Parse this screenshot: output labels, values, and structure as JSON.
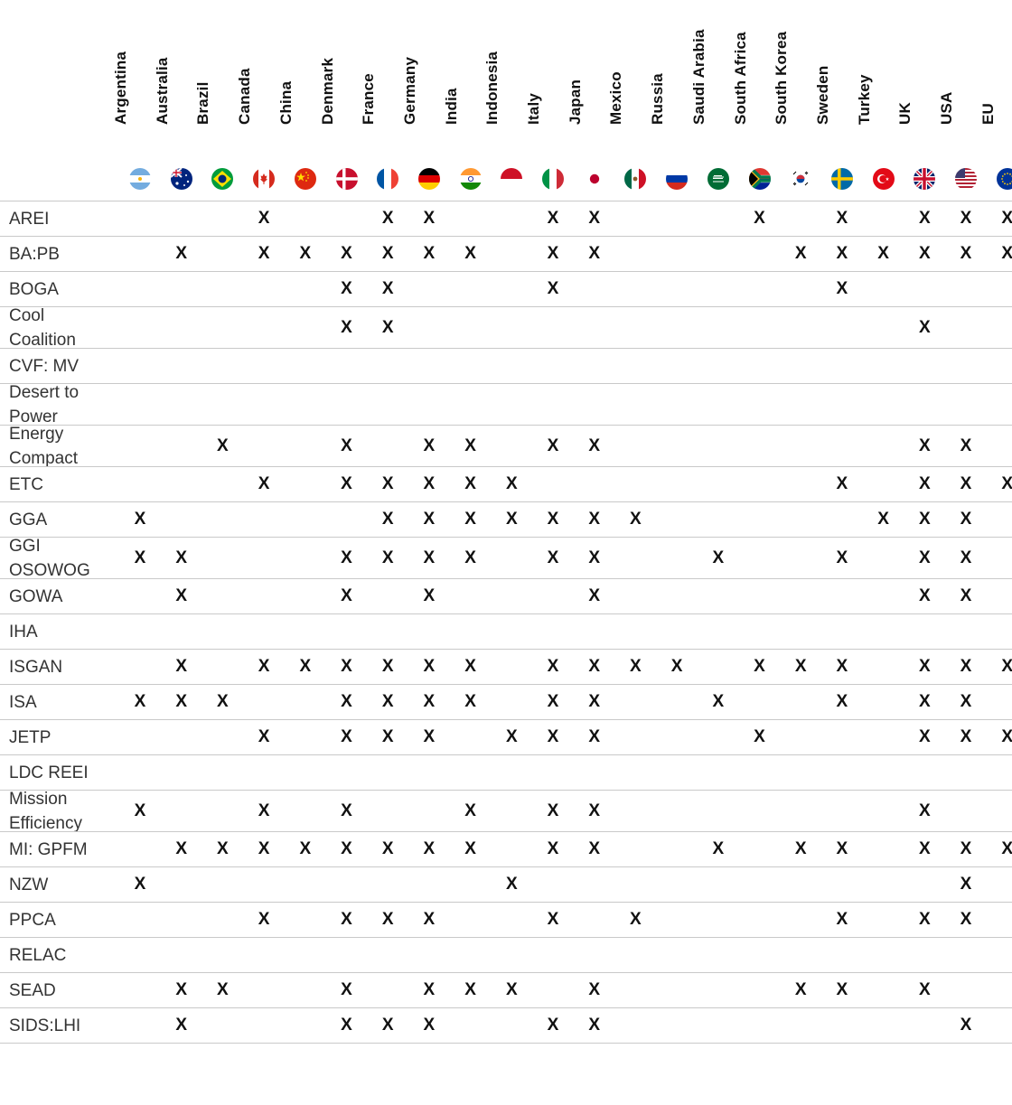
{
  "countries": [
    {
      "name": "Argentina",
      "icon": "argentina-flag-icon"
    },
    {
      "name": "Australia",
      "icon": "australia-flag-icon"
    },
    {
      "name": "Brazil",
      "icon": "brazil-flag-icon"
    },
    {
      "name": "Canada",
      "icon": "canada-flag-icon"
    },
    {
      "name": "China",
      "icon": "china-flag-icon"
    },
    {
      "name": "Denmark",
      "icon": "denmark-flag-icon"
    },
    {
      "name": "France",
      "icon": "france-flag-icon"
    },
    {
      "name": "Germany",
      "icon": "germany-flag-icon"
    },
    {
      "name": "India",
      "icon": "india-flag-icon"
    },
    {
      "name": "Indonesia",
      "icon": "indonesia-flag-icon"
    },
    {
      "name": "Italy",
      "icon": "italy-flag-icon"
    },
    {
      "name": "Japan",
      "icon": "japan-flag-icon"
    },
    {
      "name": "Mexico",
      "icon": "mexico-flag-icon"
    },
    {
      "name": "Russia",
      "icon": "russia-flag-icon"
    },
    {
      "name": "Saudi Arabia",
      "icon": "saudi-arabia-flag-icon"
    },
    {
      "name": "South Africa",
      "icon": "south-africa-flag-icon"
    },
    {
      "name": "South Korea",
      "icon": "south-korea-flag-icon"
    },
    {
      "name": "Sweden",
      "icon": "sweden-flag-icon"
    },
    {
      "name": "Turkey",
      "icon": "turkey-flag-icon"
    },
    {
      "name": "UK",
      "icon": "uk-flag-icon"
    },
    {
      "name": "USA",
      "icon": "usa-flag-icon"
    },
    {
      "name": "EU",
      "icon": "eu-flag-icon"
    }
  ],
  "mark_symbol": "X",
  "rule_color": "#c9c9c9",
  "rows": [
    {
      "label": "AREI",
      "marks": [
        "Canada",
        "France",
        "Germany",
        "Italy",
        "Japan",
        "South Africa",
        "Sweden",
        "UK",
        "USA",
        "EU"
      ]
    },
    {
      "label": "BA:PB",
      "marks": [
        "Australia",
        "Canada",
        "China",
        "Denmark",
        "France",
        "Germany",
        "India",
        "Italy",
        "Japan",
        "South Korea",
        "Sweden",
        "Turkey",
        "UK",
        "USA",
        "EU"
      ]
    },
    {
      "label": "BOGA",
      "marks": [
        "Denmark",
        "France",
        "Italy",
        "Sweden"
      ]
    },
    {
      "label": "Cool\nCoalition",
      "marks": [
        "Denmark",
        "France",
        "UK"
      ]
    },
    {
      "label": "CVF: MV",
      "marks": []
    },
    {
      "label": "Desert to\nPower",
      "marks": []
    },
    {
      "label": "Energy\nCompact",
      "marks": [
        "Brazil",
        "Denmark",
        "Germany",
        "India",
        "Italy",
        "Japan",
        "UK",
        "USA"
      ]
    },
    {
      "label": "ETC",
      "marks": [
        "Canada",
        "Denmark",
        "France",
        "Germany",
        "India",
        "Indonesia",
        "Sweden",
        "UK",
        "USA",
        "EU"
      ]
    },
    {
      "label": "GGA",
      "marks": [
        "Argentina",
        "France",
        "Germany",
        "India",
        "Indonesia",
        "Italy",
        "Japan",
        "Mexico",
        "Turkey",
        "UK",
        "USA"
      ]
    },
    {
      "label": "GGI\nOSOWOG",
      "marks": [
        "Argentina",
        "Australia",
        "Denmark",
        "France",
        "Germany",
        "India",
        "Italy",
        "Japan",
        "Saudi Arabia",
        "Sweden",
        "UK",
        "USA"
      ]
    },
    {
      "label": "GOWA",
      "marks": [
        "Australia",
        "Denmark",
        "Germany",
        "Japan",
        "UK",
        "USA"
      ]
    },
    {
      "label": "IHA",
      "marks": []
    },
    {
      "label": "ISGAN",
      "marks": [
        "Australia",
        "Canada",
        "China",
        "Denmark",
        "France",
        "Germany",
        "India",
        "Italy",
        "Japan",
        "Mexico",
        "Russia",
        "South Africa",
        "South Korea",
        "Sweden",
        "UK",
        "USA",
        "EU"
      ]
    },
    {
      "label": "ISA",
      "marks": [
        "Argentina",
        "Australia",
        "Brazil",
        "Denmark",
        "France",
        "Germany",
        "India",
        "Italy",
        "Japan",
        "Saudi Arabia",
        "Sweden",
        "UK",
        "USA"
      ]
    },
    {
      "label": "JETP",
      "marks": [
        "Canada",
        "Denmark",
        "France",
        "Germany",
        "Indonesia",
        "Italy",
        "Japan",
        "South Africa",
        "UK",
        "USA",
        "EU"
      ]
    },
    {
      "label": "LDC REEI",
      "marks": []
    },
    {
      "label": "Mission\nEfficiency",
      "marks": [
        "Argentina",
        "Canada",
        "Denmark",
        "India",
        "Italy",
        "Japan",
        "UK"
      ]
    },
    {
      "label": "MI: GPFM",
      "marks": [
        "Australia",
        "Brazil",
        "Canada",
        "China",
        "Denmark",
        "France",
        "Germany",
        "India",
        "Italy",
        "Japan",
        "Saudi Arabia",
        "South Korea",
        "Sweden",
        "UK",
        "USA",
        "EU"
      ]
    },
    {
      "label": "NZW",
      "marks": [
        "Argentina",
        "Indonesia",
        "USA"
      ]
    },
    {
      "label": "PPCA",
      "marks": [
        "Canada",
        "Denmark",
        "France",
        "Germany",
        "Italy",
        "Mexico",
        "Sweden",
        "UK",
        "USA"
      ]
    },
    {
      "label": "RELAC",
      "marks": []
    },
    {
      "label": "SEAD",
      "marks": [
        "Australia",
        "Brazil",
        "Denmark",
        "Germany",
        "India",
        "Indonesia",
        "Japan",
        "South Korea",
        "Sweden",
        "UK"
      ]
    },
    {
      "label": "SIDS:LHI",
      "marks": [
        "Australia",
        "Denmark",
        "France",
        "Germany",
        "Italy",
        "Japan",
        "USA"
      ]
    }
  ]
}
